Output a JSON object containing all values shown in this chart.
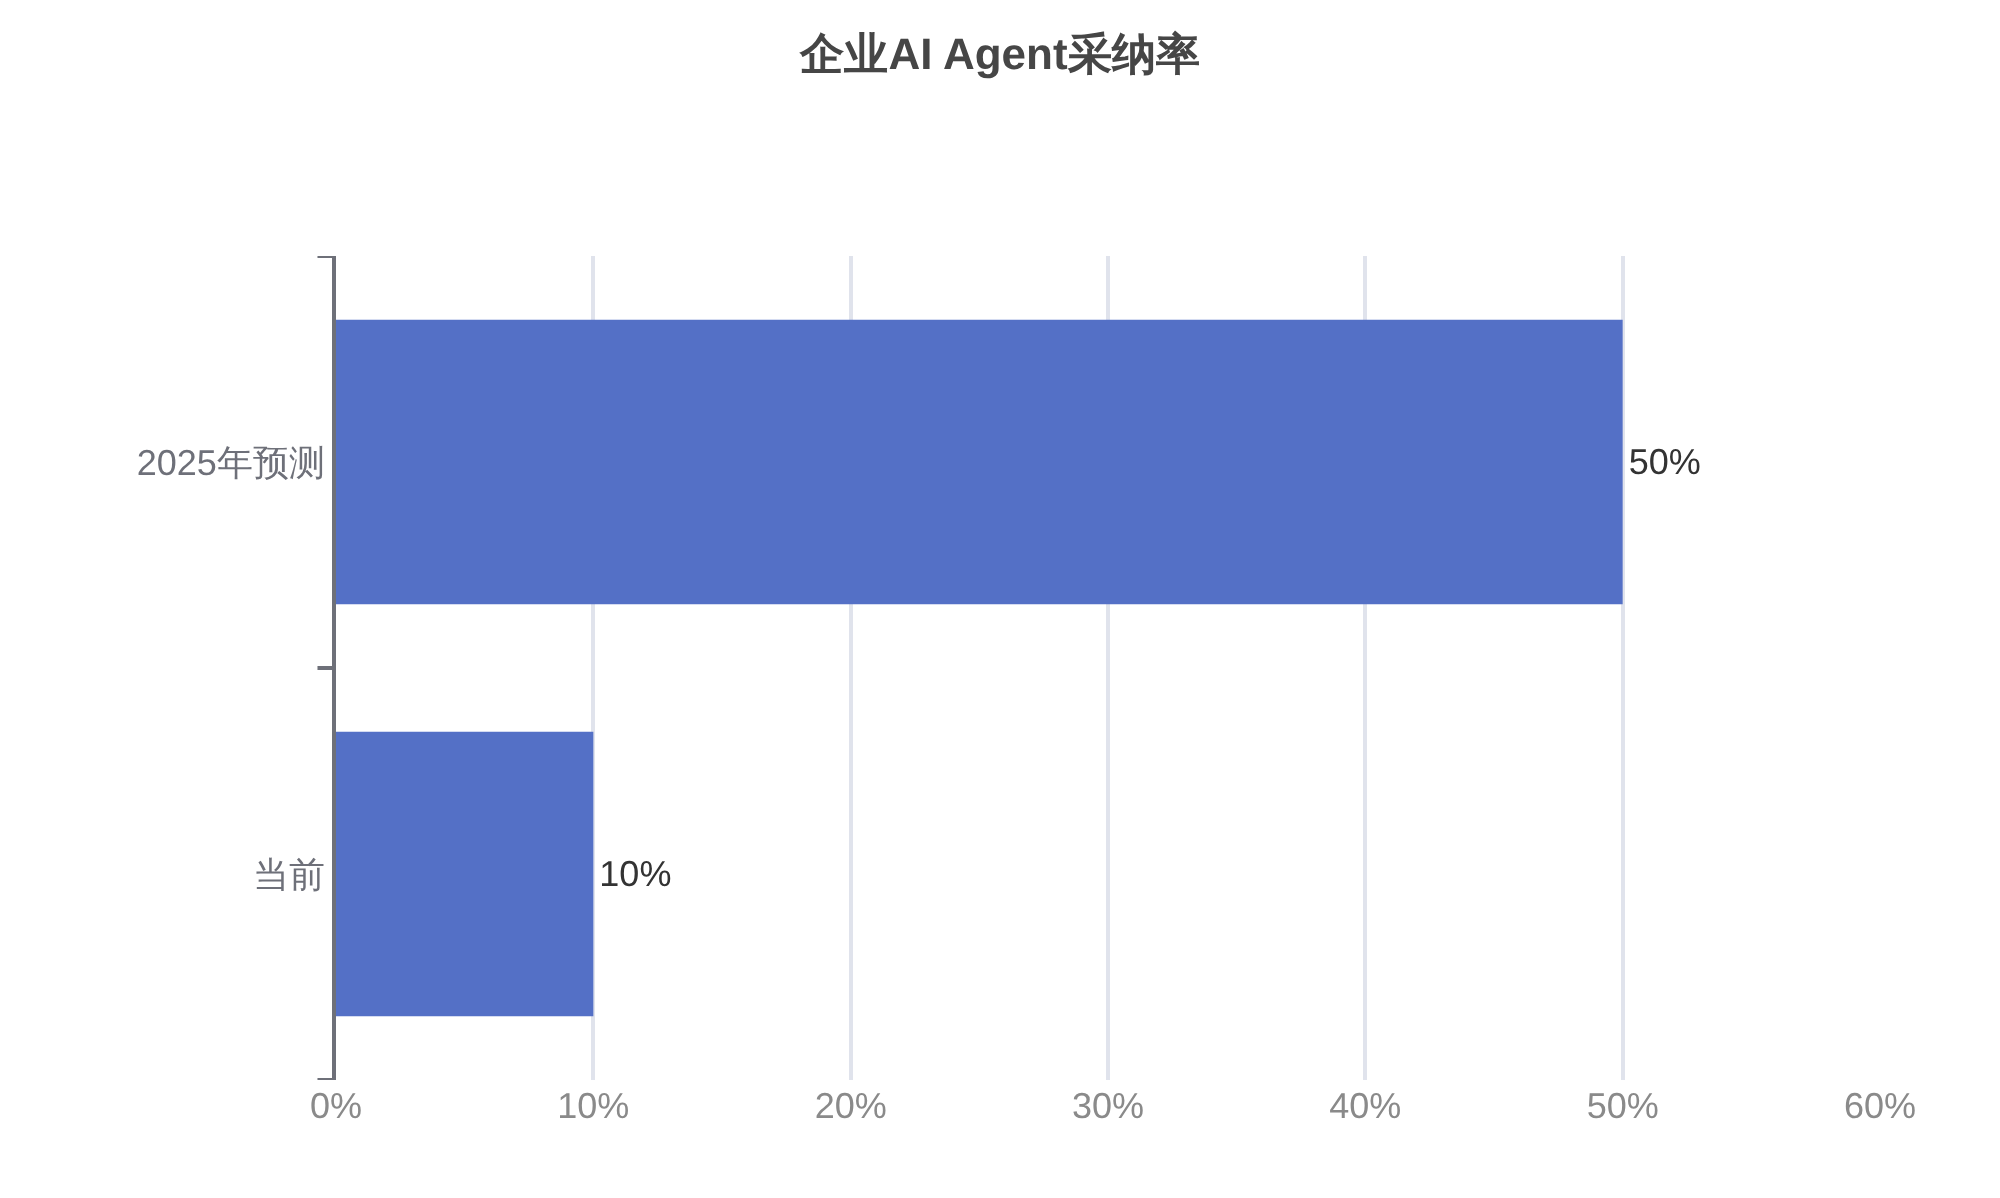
{
  "chart_data": {
    "type": "bar",
    "title": "企业AI Agent采纳率",
    "orientation": "horizontal",
    "categories": [
      "2025年预测",
      "当前"
    ],
    "values": [
      50,
      10
    ],
    "value_labels": [
      "50%",
      "10%"
    ],
    "color": "#5470c6",
    "xlim": [
      0,
      60
    ],
    "xticks": [
      {
        "value": 0,
        "label": "0%"
      },
      {
        "value": 10,
        "label": "10%"
      },
      {
        "value": 20,
        "label": "20%"
      },
      {
        "value": 30,
        "label": "30%"
      },
      {
        "value": 40,
        "label": "40%"
      },
      {
        "value": 50,
        "label": "50%"
      },
      {
        "value": 60,
        "label": "60%"
      }
    ],
    "grid": "x"
  }
}
